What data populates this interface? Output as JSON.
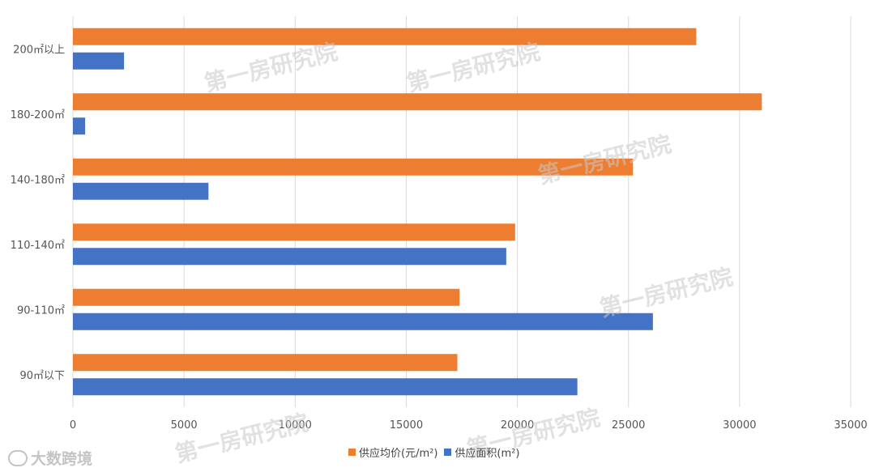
{
  "chart_data": {
    "type": "bar",
    "orientation": "horizontal",
    "categories": [
      "200㎡以上",
      "180-200㎡",
      "140-180㎡",
      "110-140㎡",
      "90-110㎡",
      "90㎡以下"
    ],
    "series": [
      {
        "name": "供应均价(元/m²)",
        "color": "#ED7D31",
        "values": [
          28050,
          31000,
          25200,
          19900,
          17400,
          17300
        ]
      },
      {
        "name": "供应面积(m²)",
        "color": "#4472C4",
        "values": [
          2300,
          550,
          6100,
          19500,
          26100,
          22700
        ]
      }
    ],
    "xlim": [
      0,
      35000
    ],
    "xticks": [
      0,
      5000,
      10000,
      15000,
      20000,
      25000,
      30000,
      35000
    ],
    "grid": true,
    "legend_position": "bottom"
  },
  "watermarks": [
    "第一房研究院",
    "第一房研究院",
    "第一房研究院",
    "第一房研究院",
    "第一房研究院",
    "第一房研究院"
  ],
  "brand": {
    "text": "大数跨境"
  }
}
